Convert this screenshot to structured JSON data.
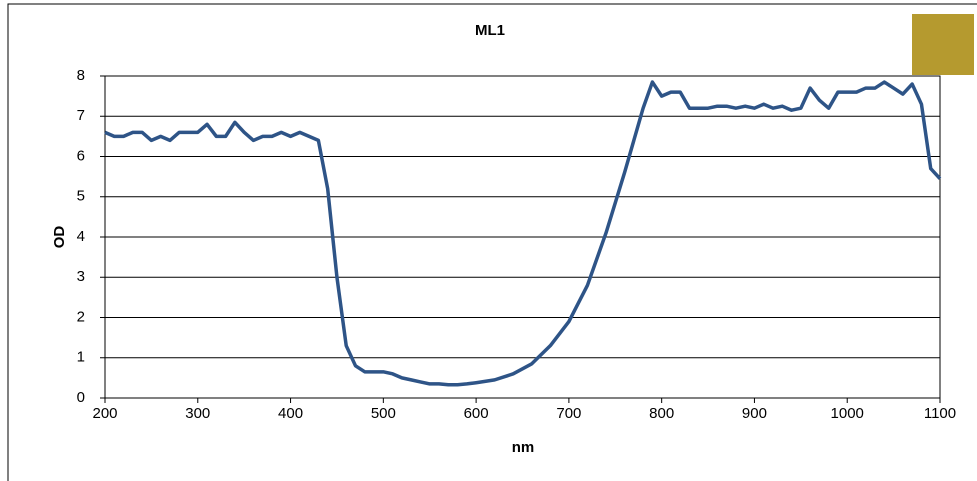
{
  "chart_data": {
    "type": "line",
    "title": "ML1",
    "xlabel": "nm",
    "ylabel": "OD",
    "x": [
      200,
      210,
      220,
      230,
      240,
      250,
      260,
      270,
      280,
      290,
      300,
      310,
      320,
      330,
      340,
      350,
      360,
      370,
      380,
      390,
      400,
      410,
      420,
      430,
      440,
      450,
      460,
      470,
      480,
      490,
      500,
      510,
      520,
      530,
      540,
      550,
      560,
      570,
      580,
      590,
      600,
      620,
      640,
      660,
      680,
      700,
      720,
      740,
      760,
      780,
      790,
      800,
      810,
      820,
      830,
      840,
      850,
      860,
      870,
      880,
      890,
      900,
      910,
      920,
      930,
      940,
      950,
      960,
      970,
      980,
      990,
      1000,
      1010,
      1020,
      1030,
      1040,
      1050,
      1060,
      1070,
      1080,
      1090,
      1100
    ],
    "series": [
      {
        "name": "ML1",
        "color": "#2e5487",
        "values": [
          6.6,
          6.5,
          6.5,
          6.6,
          6.6,
          6.4,
          6.5,
          6.4,
          6.6,
          6.6,
          6.6,
          6.8,
          6.5,
          6.5,
          6.85,
          6.6,
          6.4,
          6.5,
          6.5,
          6.6,
          6.5,
          6.6,
          6.5,
          6.4,
          5.2,
          3.0,
          1.3,
          0.8,
          0.65,
          0.65,
          0.65,
          0.6,
          0.5,
          0.45,
          0.4,
          0.35,
          0.35,
          0.33,
          0.33,
          0.35,
          0.38,
          0.45,
          0.6,
          0.85,
          1.3,
          1.9,
          2.8,
          4.1,
          5.6,
          7.2,
          7.85,
          7.5,
          7.6,
          7.6,
          7.2,
          7.2,
          7.2,
          7.25,
          7.25,
          7.2,
          7.25,
          7.2,
          7.3,
          7.2,
          7.25,
          7.15,
          7.2,
          7.7,
          7.4,
          7.2,
          7.6,
          7.6,
          7.6,
          7.7,
          7.7,
          7.85,
          7.7,
          7.55,
          7.8,
          7.3,
          5.7,
          5.45
        ]
      }
    ],
    "xlim": [
      200,
      1100
    ],
    "xticks": [
      200,
      300,
      400,
      500,
      600,
      700,
      800,
      900,
      1000,
      1100
    ],
    "ylim": [
      0,
      8
    ],
    "yticks": [
      0,
      1,
      2,
      3,
      4,
      5,
      6,
      7,
      8
    ],
    "grid": true
  }
}
